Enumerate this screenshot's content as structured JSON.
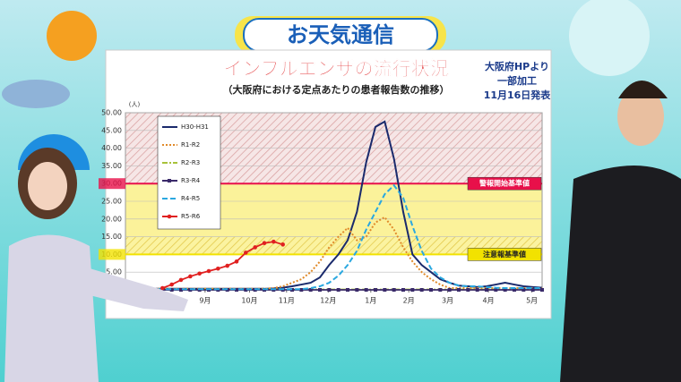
{
  "banner": "お天気通信",
  "source": [
    "大阪府HPより",
    "一部加工",
    "11月16日発表"
  ],
  "chart_data": {
    "type": "line",
    "title": "インフルエンザの流行状況",
    "subtitle": "（大阪府における定点あたりの患者報告数の推移）",
    "ylabel": "(人)",
    "x": [
      0,
      1,
      2,
      3,
      4,
      5,
      6,
      7,
      8,
      9,
      10,
      11,
      12,
      13,
      14,
      15,
      16,
      17,
      18,
      19,
      20,
      21,
      22,
      23,
      24,
      25,
      26,
      27,
      28,
      29,
      30,
      31,
      32,
      33,
      34,
      35,
      36,
      37,
      38,
      39,
      40,
      41,
      42,
      43,
      44,
      45
    ],
    "xlim": [
      0,
      45
    ],
    "xticks": [
      {
        "value": 8.6,
        "label": "9月"
      },
      {
        "value": 13.4,
        "label": "10月"
      },
      {
        "value": 17.4,
        "label": "11月"
      },
      {
        "value": 21.9,
        "label": "12月"
      },
      {
        "value": 26.5,
        "label": "1月"
      },
      {
        "value": 30.6,
        "label": "2月"
      },
      {
        "value": 34.8,
        "label": "3月"
      },
      {
        "value": 39.2,
        "label": "4月"
      },
      {
        "value": 43.9,
        "label": "5月"
      }
    ],
    "ylim": [
      0,
      50
    ],
    "yticks": [
      {
        "value": 0,
        "label": "0.00"
      },
      {
        "value": 5,
        "label": "5.00"
      },
      {
        "value": 10,
        "label": "10.00"
      },
      {
        "value": 15,
        "label": "15.00"
      },
      {
        "value": 20,
        "label": "20.00"
      },
      {
        "value": 25,
        "label": "25.00"
      },
      {
        "value": 30,
        "label": "30.00"
      },
      {
        "value": 35,
        "label": "35.00"
      },
      {
        "value": 40,
        "label": "40.00"
      },
      {
        "value": 45,
        "label": "45.00"
      },
      {
        "value": 50,
        "label": "50.00"
      }
    ],
    "grid": true,
    "thresholds": [
      {
        "value": 30,
        "label": "警報開始基準値",
        "color": "#e8104a"
      },
      {
        "value": 10,
        "label": "注意報基準値",
        "color": "#f2e200"
      }
    ],
    "series": [
      {
        "name": "H30-H31",
        "color": "#1a2a6c",
        "dash": "none",
        "marker": "none",
        "values": [
          0.3,
          0.3,
          0.3,
          0.3,
          0.3,
          0.3,
          0.3,
          0.3,
          0.3,
          0.3,
          0.3,
          0.3,
          0.3,
          0.3,
          0.3,
          0.3,
          0.4,
          0.6,
          1,
          1.5,
          2,
          3.5,
          7,
          10,
          14,
          22,
          36,
          46,
          47.5,
          37,
          22,
          10,
          7,
          5,
          3,
          2,
          1.2,
          1,
          0.8,
          1,
          1.5,
          2,
          1.5,
          1,
          0.8,
          0.6
        ]
      },
      {
        "name": "R1-R2",
        "color": "#e08a2a",
        "dash": "2,2",
        "marker": "none",
        "values": [
          0.3,
          0.3,
          0.3,
          0.3,
          0.3,
          0.3,
          0.3,
          0.3,
          0.3,
          0.3,
          0.3,
          0.3,
          0.3,
          0.3,
          0.3,
          0.3,
          0.5,
          1,
          2,
          3,
          5,
          8,
          12,
          15,
          17.5,
          14,
          15,
          19,
          20.5,
          17,
          12,
          8,
          5,
          3,
          1.5,
          0.5,
          0.5,
          0.5,
          0.5,
          0.5,
          0.5,
          0.5,
          0.5,
          0.5,
          0.5,
          0.5
        ]
      },
      {
        "name": "R2-R3",
        "color": "#a8c23a",
        "dash": "6,2,2,2",
        "marker": "none",
        "values": [
          0.1,
          0.1,
          0.1,
          0.1,
          0.1,
          0.1,
          0.1,
          0.1,
          0.1,
          0.1,
          0.1,
          0.1,
          0.1,
          0.1,
          0.1,
          0.1,
          0.1,
          0.1,
          0.1,
          0.1,
          0.1,
          0.1,
          0.1,
          0.1,
          0.1,
          0.1,
          0.1,
          0.1,
          0.1,
          0.1,
          0.1,
          0.1,
          0.1,
          0.1,
          0.1,
          0.1,
          0.1,
          0.1,
          0.1,
          0.1,
          0.1,
          0.1,
          0.1,
          0.1,
          0.1,
          0.1
        ]
      },
      {
        "name": "R3-R4",
        "color": "#3a2a6a",
        "dash": "none",
        "marker": "square",
        "values": [
          0,
          0,
          0,
          0,
          0,
          0,
          0,
          0,
          0,
          0,
          0,
          0,
          0,
          0,
          0,
          0,
          0,
          0,
          0,
          0,
          0,
          0,
          0,
          0,
          0,
          0,
          0,
          0,
          0,
          0,
          0,
          0,
          0,
          0,
          0,
          0,
          0,
          0,
          0,
          0,
          0,
          0,
          0,
          0,
          0,
          0
        ]
      },
      {
        "name": "R4-R5",
        "color": "#2aa8e0",
        "dash": "6,3",
        "marker": "none",
        "values": [
          0.2,
          0.2,
          0.2,
          0.2,
          0.2,
          0.2,
          0.2,
          0.2,
          0.2,
          0.2,
          0.2,
          0.2,
          0.2,
          0.2,
          0.2,
          0.2,
          0.2,
          0.2,
          0.2,
          0.2,
          0.5,
          1,
          2,
          4,
          7,
          11,
          17,
          22,
          27,
          29.5,
          26,
          18,
          11,
          6,
          3.5,
          2,
          1.2,
          1,
          1,
          0.8,
          0.6,
          0.5,
          0.5,
          0.5,
          0.5,
          0.5
        ]
      },
      {
        "name": "R5-R6",
        "color": "#e02020",
        "dash": "none",
        "marker": "circle",
        "values": [
          null,
          null,
          null,
          null,
          0.5,
          1.5,
          2.8,
          3.8,
          4.6,
          5.3,
          6,
          6.8,
          8,
          10.5,
          12,
          13.2,
          13.6,
          12.8,
          null,
          null,
          null,
          null,
          null,
          null,
          null,
          null,
          null,
          null,
          null,
          null,
          null,
          null,
          null,
          null,
          null,
          null,
          null,
          null,
          null,
          null,
          null,
          null,
          null,
          null,
          null,
          null
        ]
      }
    ]
  }
}
